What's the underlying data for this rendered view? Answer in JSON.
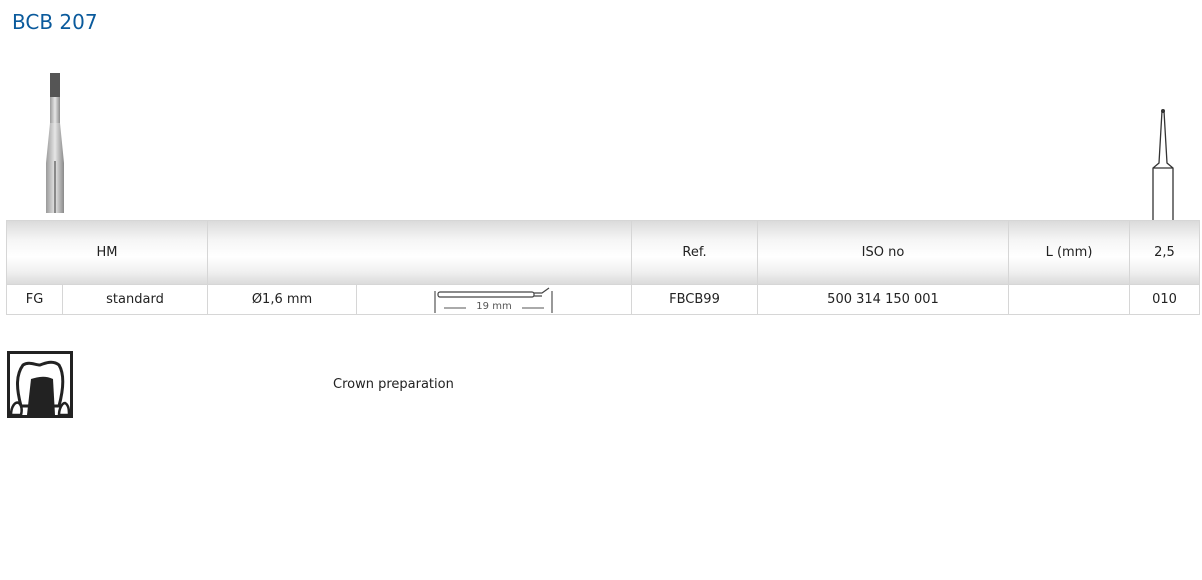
{
  "title": "BCB 207",
  "table": {
    "header": {
      "material": "HM",
      "ref": "Ref.",
      "iso": "ISO no",
      "length": "L (mm)",
      "length_value": "2,5"
    },
    "row": {
      "type": "FG",
      "variant": "standard",
      "diameter": "Ø1,6 mm",
      "shank_length": "19 mm",
      "ref": "FBCB99",
      "iso": "500 314 150 001",
      "length": "",
      "size": "010"
    }
  },
  "application": {
    "icon": "crown-preparation-icon",
    "label": "Crown preparation"
  },
  "colors": {
    "title": "#0a5a9c"
  }
}
